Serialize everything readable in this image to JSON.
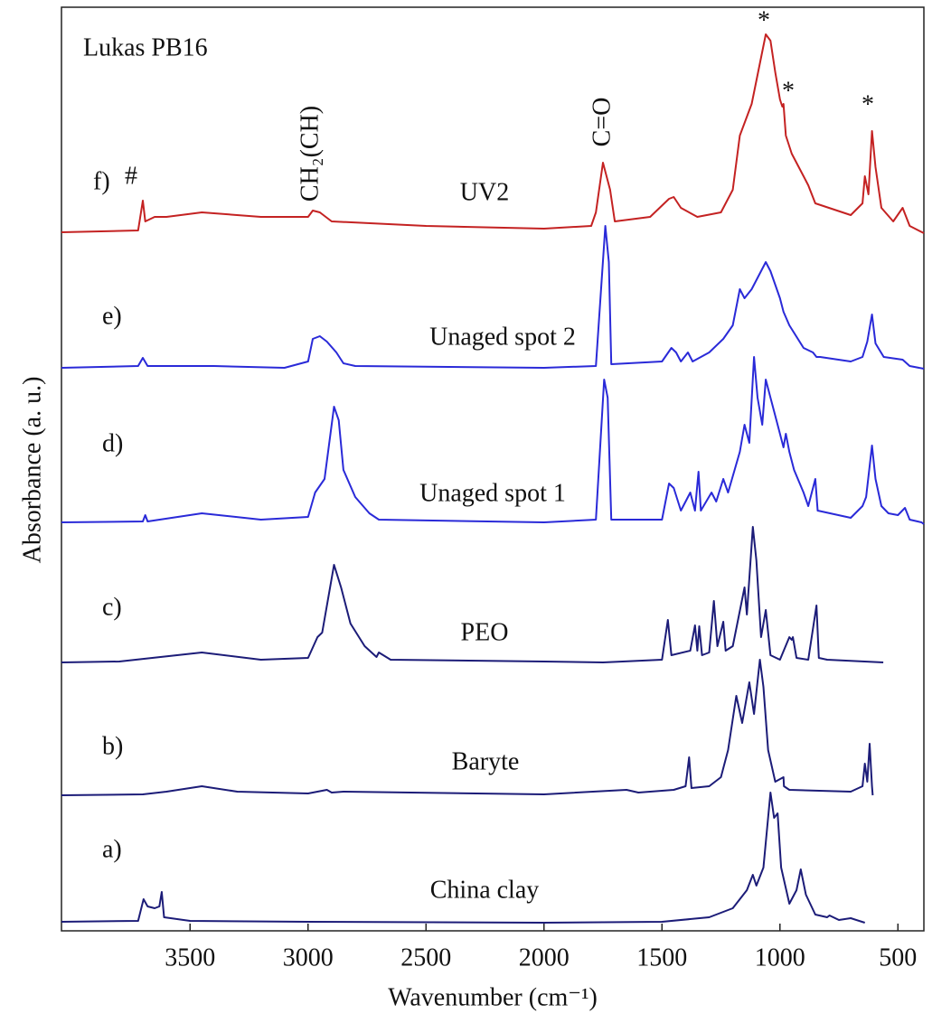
{
  "chart_data": {
    "type": "line",
    "title": "Lukas PB16",
    "x_label": "Wavenumber (cm⁻¹)",
    "y_label": "Absorbance (a. u.)",
    "xlim": [
      4045,
      390
    ],
    "ylim": [
      0,
      1022
    ],
    "xticks": [
      3500,
      3000,
      2500,
      2000,
      1500,
      1000,
      500
    ],
    "annotations": [
      "#",
      "CH₂(CH)",
      "C=O",
      "*",
      "*",
      "*"
    ],
    "series": [
      {
        "name": "China clay",
        "label": "a)",
        "color": "#1c1c78",
        "x": [
          4045,
          3720,
          3697,
          3680,
          3650,
          3630,
          3620,
          3610,
          3500,
          3000,
          2000,
          1500,
          1300,
          1200,
          1140,
          1115,
          1100,
          1070,
          1040,
          1025,
          1010,
          995,
          960,
          930,
          912,
          890,
          850,
          800,
          790,
          750,
          700,
          640
        ],
        "values": [
          10,
          11,
          35,
          27,
          25,
          27,
          43,
          15,
          11,
          10,
          9,
          10,
          15,
          25,
          45,
          62,
          50,
          70,
          153,
          125,
          130,
          70,
          30,
          45,
          68,
          40,
          18,
          15,
          17,
          12,
          14,
          9
        ]
      },
      {
        "name": "Baryte",
        "label": "b)",
        "color": "#1c1c78",
        "x": [
          4045,
          3700,
          3600,
          3450,
          3300,
          3000,
          2920,
          2900,
          2850,
          2000,
          1650,
          1600,
          1450,
          1400,
          1385,
          1375,
          1300,
          1250,
          1220,
          1185,
          1160,
          1130,
          1110,
          1085,
          1070,
          1050,
          1020,
          985,
          983,
          960,
          700,
          650,
          640,
          630,
          620,
          610,
          607
        ],
        "values": [
          150,
          151,
          154,
          160,
          154,
          152,
          156,
          153,
          154,
          151,
          156,
          153,
          156,
          160,
          192,
          158,
          160,
          170,
          200,
          260,
          230,
          275,
          240,
          300,
          270,
          200,
          165,
          170,
          160,
          156,
          154,
          160,
          185,
          165,
          207,
          160,
          150
        ]
      },
      {
        "name": "PEO",
        "label": "c)",
        "color": "#1c1c78",
        "x": [
          4045,
          3800,
          3450,
          3200,
          3000,
          2960,
          2940,
          2890,
          2860,
          2820,
          2760,
          2710,
          2700,
          2650,
          2000,
          1750,
          1500,
          1475,
          1460,
          1380,
          1360,
          1350,
          1342,
          1330,
          1300,
          1280,
          1265,
          1240,
          1230,
          1200,
          1150,
          1140,
          1115,
          1100,
          1080,
          1060,
          1040,
          1000,
          960,
          950,
          945,
          930,
          880,
          845,
          835,
          800,
          562
        ],
        "values": [
          297,
          298,
          308,
          300,
          302,
          325,
          330,
          405,
          380,
          340,
          315,
          303,
          308,
          300,
          298,
          297,
          300,
          344,
          305,
          310,
          338,
          310,
          337,
          305,
          308,
          365,
          315,
          342,
          310,
          315,
          380,
          350,
          447,
          410,
          325,
          355,
          305,
          300,
          325,
          322,
          325,
          302,
          300,
          360,
          302,
          300,
          297
        ]
      },
      {
        "name": "Unaged spot 1",
        "label": "d)",
        "color": "#2a2ad8",
        "x": [
          4045,
          3700,
          3690,
          3680,
          3450,
          3200,
          3000,
          2970,
          2930,
          2890,
          2870,
          2850,
          2800,
          2740,
          2700,
          2000,
          1780,
          1745,
          1730,
          1715,
          1500,
          1470,
          1450,
          1420,
          1380,
          1360,
          1345,
          1335,
          1290,
          1270,
          1240,
          1220,
          1170,
          1150,
          1130,
          1110,
          1095,
          1075,
          1060,
          1040,
          1010,
          985,
          975,
          960,
          940,
          900,
          880,
          850,
          840,
          700,
          650,
          635,
          610,
          595,
          570,
          540,
          500,
          470,
          450,
          400,
          390
        ],
        "values": [
          452,
          453,
          460,
          453,
          462,
          455,
          458,
          485,
          500,
          580,
          565,
          510,
          480,
          462,
          455,
          452,
          455,
          610,
          590,
          455,
          455,
          495,
          490,
          465,
          485,
          465,
          508,
          465,
          485,
          475,
          500,
          485,
          530,
          560,
          540,
          635,
          590,
          560,
          610,
          590,
          560,
          535,
          550,
          530,
          510,
          485,
          470,
          500,
          465,
          457,
          470,
          480,
          537,
          500,
          470,
          462,
          460,
          468,
          455,
          452,
          450
        ]
      },
      {
        "name": "Unaged spot 2",
        "label": "e)",
        "color": "#2a2ad8",
        "x": [
          4045,
          3720,
          3700,
          3680,
          3400,
          3100,
          3000,
          2980,
          2950,
          2920,
          2880,
          2850,
          2800,
          2000,
          1780,
          1740,
          1725,
          1715,
          1500,
          1460,
          1440,
          1420,
          1390,
          1370,
          1300,
          1240,
          1200,
          1170,
          1150,
          1120,
          1060,
          1040,
          1000,
          985,
          960,
          900,
          860,
          845,
          830,
          700,
          650,
          630,
          610,
          595,
          560,
          480,
          450,
          390
        ],
        "values": [
          623,
          625,
          634,
          625,
          625,
          623,
          630,
          655,
          658,
          652,
          640,
          628,
          625,
          623,
          625,
          780,
          740,
          627,
          630,
          645,
          640,
          630,
          640,
          630,
          640,
          655,
          670,
          710,
          700,
          710,
          740,
          730,
          700,
          685,
          670,
          645,
          640,
          635,
          635,
          630,
          635,
          652,
          682,
          650,
          635,
          632,
          625,
          622
        ]
      },
      {
        "name": "UV2",
        "label": "f)",
        "color": "#c42222",
        "x": [
          4045,
          3720,
          3700,
          3690,
          3650,
          3600,
          3450,
          3200,
          3000,
          2980,
          2950,
          2900,
          2500,
          2000,
          1800,
          1780,
          1750,
          1720,
          1700,
          1550,
          1470,
          1450,
          1420,
          1350,
          1250,
          1200,
          1170,
          1120,
          1060,
          1040,
          1020,
          1000,
          990,
          985,
          975,
          950,
          900,
          880,
          850,
          700,
          650,
          640,
          625,
          610,
          595,
          570,
          520,
          480,
          450,
          390
        ],
        "values": [
          773,
          775,
          808,
          785,
          790,
          790,
          795,
          790,
          790,
          797,
          795,
          785,
          780,
          777,
          780,
          795,
          850,
          820,
          785,
          790,
          810,
          812,
          800,
          790,
          795,
          820,
          880,
          915,
          992,
          985,
          950,
          920,
          912,
          915,
          880,
          860,
          835,
          825,
          805,
          792,
          805,
          835,
          815,
          885,
          845,
          800,
          785,
          800,
          780,
          772
        ]
      }
    ]
  }
}
